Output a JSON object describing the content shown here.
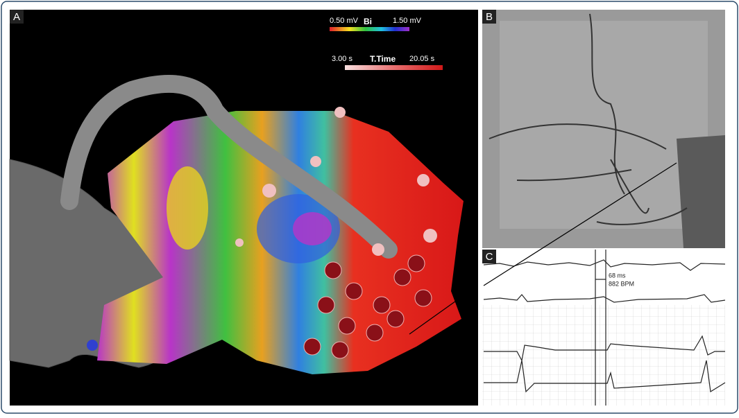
{
  "panels": {
    "a": {
      "label": "A",
      "voltage_scale": {
        "min": "0.50 mV",
        "name": "Bi",
        "max": "1.50 mV"
      },
      "time_scale": {
        "min": "3.00 s",
        "name": "T.Time",
        "max": "20.05 s"
      }
    },
    "b": {
      "label": "B"
    },
    "c": {
      "label": "C",
      "interval": "68 ms",
      "rate": "882 BPM"
    }
  }
}
